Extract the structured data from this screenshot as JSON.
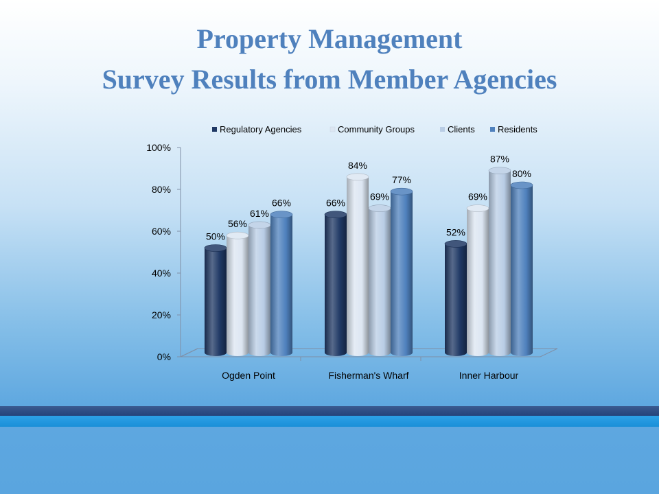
{
  "slide": {
    "title_line1": "Property Management",
    "title_line2": "Survey Results from Member Agencies"
  },
  "colors": {
    "title": "#4f81bd",
    "band_dark": "#2b4a80",
    "band_light": "#1f96df"
  },
  "chart_data": {
    "type": "bar",
    "style": "3d-cylinder",
    "categories": [
      "Ogden Point",
      "Fisherman's Wharf",
      "Inner Harbour"
    ],
    "series": [
      {
        "name": "Regulatory Agencies",
        "values": [
          50,
          66,
          52
        ],
        "color": "#1f3864"
      },
      {
        "name": "Community Groups",
        "values": [
          56,
          84,
          69
        ],
        "color": "#dce6f2"
      },
      {
        "name": "Clients",
        "values": [
          61,
          69,
          87
        ],
        "color": "#b9cde5"
      },
      {
        "name": "Residents",
        "values": [
          66,
          77,
          80
        ],
        "color": "#4f81bd"
      }
    ],
    "data_labels": [
      [
        "50%",
        "66%",
        "52%"
      ],
      [
        "56%",
        "84%",
        "69%"
      ],
      [
        "61%",
        "69%",
        "87%"
      ],
      [
        "66%",
        "77%",
        "80%"
      ]
    ],
    "yticks": [
      "0%",
      "20%",
      "40%",
      "60%",
      "80%",
      "100%"
    ],
    "ylim": [
      0,
      100
    ],
    "legend_position": "top",
    "grid": false
  }
}
